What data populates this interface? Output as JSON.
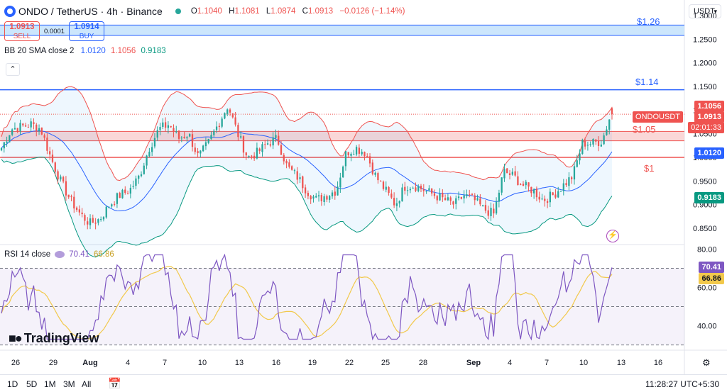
{
  "header": {
    "symbol": "ONDO / TetherUS · 4h · Binance",
    "open_k": "O",
    "open": "1.1040",
    "high_k": "H",
    "high": "1.1081",
    "low_k": "L",
    "low": "1.0874",
    "close_k": "C",
    "close": "1.0913",
    "change": "−0.0126 (−1.14%)"
  },
  "trade": {
    "sell_price": "1.0913",
    "sell_label": "SELL",
    "spread": "0.0001",
    "buy_price": "1.0914",
    "buy_label": "BUY"
  },
  "currency_button": "USDT",
  "bb_indicator": {
    "label": "BB 20 SMA close 2",
    "basis": "1.0120",
    "upper": "1.1056",
    "lower": "0.9183"
  },
  "rsi_indicator": {
    "label": "RSI 14 close",
    "rsi": "70.41",
    "ma": "66.86"
  },
  "collapse_icon": "chevron-up-icon",
  "price_labels": {
    "upper": "1.1056",
    "symbol": "ONDOUSDT",
    "last": "1.0913",
    "countdown": "02:01:33",
    "basis": "1.0120",
    "lower": "0.9183"
  },
  "rsi_labels": {
    "rsi": "70.41",
    "ma": "66.86"
  },
  "levels": [
    "$1.26",
    "$1.14",
    "$1.05",
    "$1"
  ],
  "brand": "TradingView",
  "bottom_bar": {
    "ranges": [
      "1D",
      "5D",
      "1M",
      "3M",
      "All"
    ],
    "time": "11:28:27 UTC+5:30"
  },
  "colors": {
    "up": "#26a69a",
    "down": "#ef5350",
    "basis": "#2962ff",
    "upper_band": "#ef5350",
    "lower_band": "#089981",
    "rsi": "#7e57c2",
    "rsi_ma": "#f2c94c"
  },
  "chart_data": [
    {
      "type": "candlestick",
      "symbol": "ONDOUSDT",
      "interval": "4h",
      "y_ticks": [
        1.3,
        1.25,
        1.2,
        1.15,
        1.1,
        1.05,
        1.0,
        0.95,
        0.9,
        0.85
      ],
      "ylim": [
        0.82,
        1.3
      ],
      "x_ticks": [
        "26",
        "29",
        "Aug",
        "4",
        "7",
        "10",
        "13",
        "16",
        "19",
        "22",
        "25",
        "28",
        "Sep",
        "4",
        "7",
        "10",
        "13",
        "16"
      ],
      "horizontal_levels": [
        {
          "label": "$1.26",
          "value": 1.265,
          "style": "zone",
          "band": [
            1.258,
            1.28
          ]
        },
        {
          "label": "$1.14",
          "value": 1.143,
          "style": "line"
        },
        {
          "label": "$1.05",
          "value": 1.045,
          "style": "zone",
          "band": [
            1.035,
            1.055
          ]
        },
        {
          "label": "$1",
          "value": 1.0,
          "style": "line"
        }
      ],
      "close_path": [
        1.02,
        1.06,
        1.065,
        1.07,
        1.06,
        1.0,
        0.95,
        0.91,
        0.88,
        0.86,
        0.87,
        0.9,
        0.92,
        0.93,
        0.96,
        1.02,
        1.06,
        1.07,
        1.04,
        1.05,
        1.0,
        1.03,
        1.07,
        1.11,
        1.05,
        1.0,
        1.01,
        1.03,
        1.04,
        0.98,
        0.96,
        0.93,
        0.91,
        0.92,
        0.93,
        1.01,
        1.02,
        1.01,
        0.96,
        0.93,
        0.9,
        0.94,
        0.94,
        0.93,
        0.92,
        0.91,
        0.9,
        0.92,
        0.91,
        0.89,
        0.88,
        0.97,
        0.96,
        0.94,
        0.93,
        0.91,
        0.92,
        0.94,
        0.96,
        1.03,
        1.03,
        1.035,
        1.1
      ],
      "last_close": 1.0913,
      "bollinger": {
        "period": 20,
        "stddev": 2,
        "basis_last": 1.012,
        "upper_last": 1.1056,
        "lower_last": 0.9183
      }
    },
    {
      "type": "line",
      "title": "RSI 14 close",
      "y_ticks": [
        80,
        60,
        40
      ],
      "ylim": [
        28,
        80
      ],
      "bands": [
        30,
        50,
        70
      ],
      "series": [
        {
          "name": "RSI",
          "last": 70.41
        },
        {
          "name": "MA",
          "last": 66.86
        }
      ]
    }
  ]
}
